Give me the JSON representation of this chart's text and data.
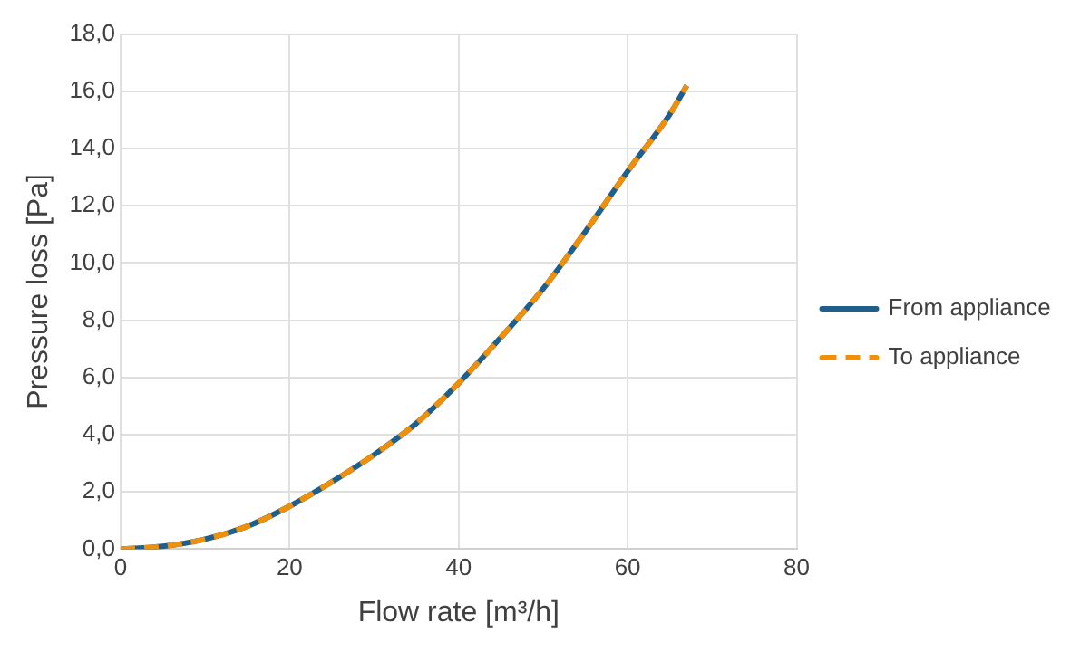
{
  "chart_data": {
    "type": "line",
    "xlabel": "Flow rate [m³/h]",
    "ylabel": "Pressure loss [Pa]",
    "x": [
      0,
      5,
      10,
      15,
      20,
      25,
      30,
      35,
      40,
      45,
      50,
      55,
      60,
      65,
      67
    ],
    "series": [
      {
        "name": "From appliance",
        "color": "#1f5f8b",
        "line_style": "solid",
        "values": [
          0,
          0.1,
          0.35,
          0.8,
          1.5,
          2.35,
          3.3,
          4.4,
          5.8,
          7.4,
          9.1,
          11.1,
          13.2,
          15.2,
          16.2
        ]
      },
      {
        "name": "To appliance",
        "color": "#f0900a",
        "line_style": "dashed",
        "values": [
          0,
          0.1,
          0.35,
          0.8,
          1.5,
          2.35,
          3.3,
          4.4,
          5.8,
          7.4,
          9.1,
          11.1,
          13.2,
          15.2,
          16.2
        ]
      }
    ],
    "xlim": [
      0,
      80
    ],
    "xticks": [
      0,
      20,
      40,
      60,
      80
    ],
    "ylim": [
      0,
      18
    ],
    "yticks": [
      {
        "value": 0,
        "label": "0,0"
      },
      {
        "value": 2,
        "label": "2,0"
      },
      {
        "value": 4,
        "label": "4,0"
      },
      {
        "value": 6,
        "label": "6,0"
      },
      {
        "value": 8,
        "label": "8,0"
      },
      {
        "value": 10,
        "label": "10,0"
      },
      {
        "value": 12,
        "label": "12,0"
      },
      {
        "value": 14,
        "label": "14,0"
      },
      {
        "value": 16,
        "label": "16,0"
      },
      {
        "value": 18,
        "label": "18,0"
      }
    ],
    "grid": true,
    "legend": "right",
    "marker": "none"
  }
}
